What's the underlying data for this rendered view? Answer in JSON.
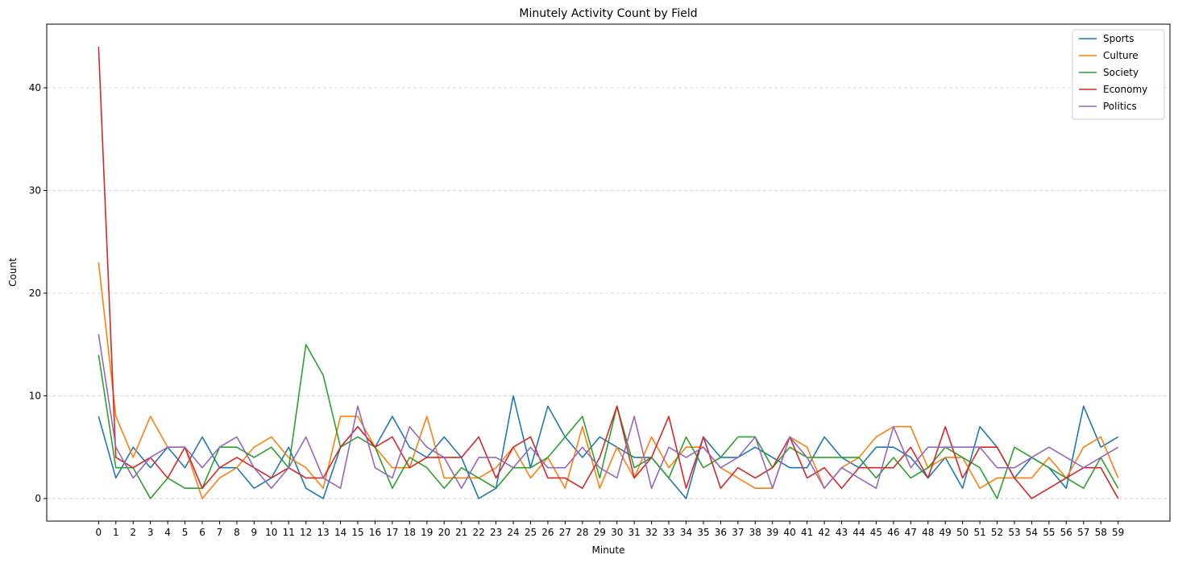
{
  "chart_data": {
    "type": "line",
    "title": "Minutely Activity Count by Field",
    "xlabel": "Minute",
    "ylabel": "Count",
    "x": [
      0,
      1,
      2,
      3,
      4,
      5,
      6,
      7,
      8,
      9,
      10,
      11,
      12,
      13,
      14,
      15,
      16,
      17,
      18,
      19,
      20,
      21,
      22,
      23,
      24,
      25,
      26,
      27,
      28,
      29,
      30,
      31,
      32,
      33,
      34,
      35,
      36,
      37,
      38,
      39,
      40,
      41,
      42,
      43,
      44,
      45,
      46,
      47,
      48,
      49,
      50,
      51,
      52,
      53,
      54,
      55,
      56,
      57,
      58,
      59
    ],
    "xlim": [
      -3,
      62
    ],
    "ylim": [
      -2.2,
      46.2
    ],
    "yticks": [
      0,
      10,
      20,
      30,
      40
    ],
    "grid": "y-dashed",
    "legend_position": "top-right",
    "series": [
      {
        "name": "Sports",
        "color": "#1f77b4",
        "values": [
          8,
          2,
          5,
          3,
          5,
          3,
          6,
          3,
          3,
          1,
          2,
          5,
          1,
          0,
          5,
          7,
          5,
          8,
          5,
          4,
          6,
          4,
          0,
          1,
          10,
          3,
          9,
          6,
          4,
          6,
          5,
          4,
          4,
          2,
          0,
          6,
          4,
          4,
          5,
          4,
          3,
          3,
          6,
          4,
          3,
          5,
          5,
          4,
          2,
          4,
          1,
          7,
          5,
          2,
          4,
          3,
          1,
          9,
          5,
          6
        ]
      },
      {
        "name": "Culture",
        "color": "#ff7f0e",
        "values": [
          23,
          8,
          4,
          8,
          5,
          5,
          0,
          2,
          3,
          5,
          6,
          4,
          3,
          1,
          8,
          8,
          5,
          3,
          3,
          8,
          2,
          2,
          2,
          3,
          5,
          2,
          4,
          1,
          7,
          1,
          5,
          2,
          6,
          3,
          5,
          5,
          3,
          2,
          1,
          1,
          6,
          5,
          1,
          3,
          4,
          6,
          7,
          7,
          3,
          4,
          4,
          1,
          2,
          2,
          2,
          4,
          2,
          5,
          6,
          2
        ]
      },
      {
        "name": "Society",
        "color": "#2ca02c",
        "values": [
          14,
          3,
          3,
          0,
          2,
          1,
          1,
          5,
          5,
          4,
          5,
          3,
          15,
          12,
          5,
          6,
          5,
          1,
          4,
          3,
          1,
          3,
          2,
          1,
          3,
          3,
          4,
          6,
          8,
          2,
          9,
          3,
          4,
          2,
          6,
          3,
          4,
          6,
          6,
          3,
          5,
          4,
          4,
          4,
          4,
          2,
          4,
          2,
          3,
          5,
          4,
          3,
          0,
          5,
          4,
          3,
          2,
          1,
          4,
          1
        ]
      },
      {
        "name": "Economy",
        "color": "#d62728",
        "values": [
          44,
          4,
          3,
          4,
          2,
          5,
          1,
          3,
          4,
          3,
          2,
          3,
          2,
          2,
          5,
          7,
          5,
          6,
          3,
          4,
          4,
          4,
          6,
          2,
          5,
          6,
          2,
          2,
          1,
          4,
          9,
          2,
          4,
          8,
          1,
          6,
          1,
          3,
          2,
          3,
          6,
          2,
          3,
          1,
          3,
          3,
          3,
          5,
          2,
          7,
          2,
          5,
          5,
          2,
          0,
          1,
          2,
          3,
          3,
          0
        ]
      },
      {
        "name": "Politics",
        "color": "#9467bd",
        "values": [
          16,
          5,
          2,
          4,
          5,
          5,
          3,
          5,
          6,
          3,
          1,
          3,
          6,
          2,
          1,
          9,
          3,
          2,
          7,
          5,
          4,
          1,
          4,
          4,
          3,
          5,
          3,
          3,
          5,
          3,
          2,
          8,
          1,
          5,
          4,
          5,
          3,
          4,
          6,
          1,
          6,
          4,
          1,
          3,
          2,
          1,
          7,
          3,
          5,
          5,
          5,
          5,
          3,
          3,
          4,
          5,
          4,
          3,
          4,
          5
        ]
      }
    ]
  }
}
